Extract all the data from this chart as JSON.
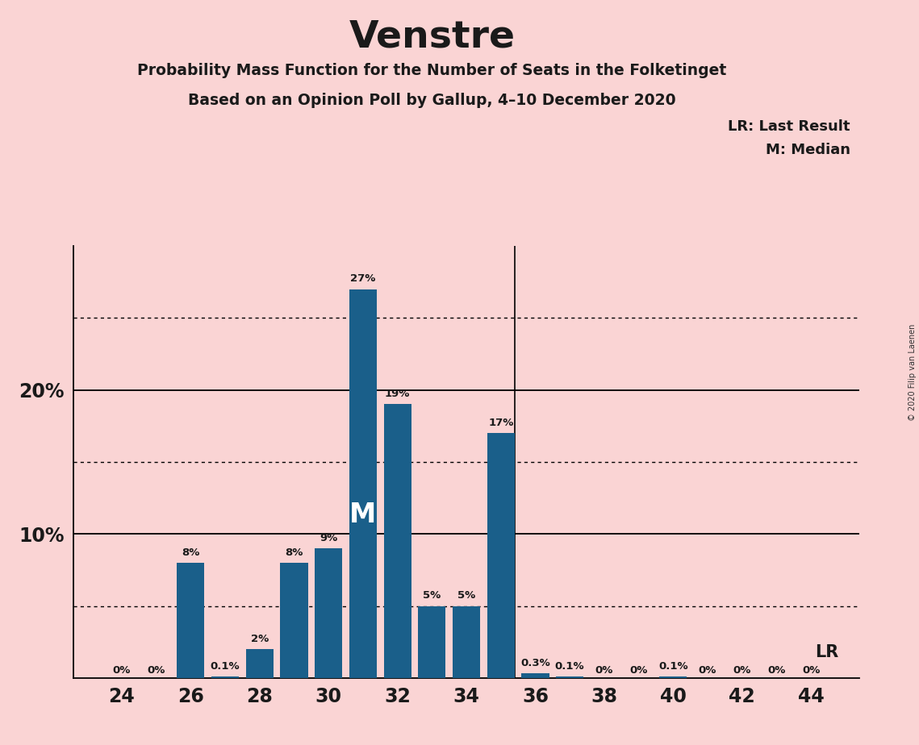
{
  "title": "Venstre",
  "subtitle1": "Probability Mass Function for the Number of Seats in the Folketinget",
  "subtitle2": "Based on an Opinion Poll by Gallup, 4–10 December 2020",
  "copyright": "© 2020 Filip van Laenen",
  "background_color": "#FAD4D4",
  "bar_color": "#1a5f8a",
  "seats": [
    24,
    25,
    26,
    27,
    28,
    29,
    30,
    31,
    32,
    33,
    34,
    35,
    36,
    37,
    38,
    39,
    40,
    41,
    42,
    43,
    44
  ],
  "probabilities": [
    0.0,
    0.0,
    8.0,
    0.1,
    2.0,
    8.0,
    9.0,
    27.0,
    19.0,
    5.0,
    5.0,
    17.0,
    0.3,
    0.1,
    0.0,
    0.0,
    0.1,
    0.0,
    0.0,
    0.0,
    0.0
  ],
  "labels": [
    "0%",
    "0%",
    "8%",
    "0.1%",
    "2%",
    "8%",
    "9%",
    "27%",
    "19%",
    "5%",
    "5%",
    "17%",
    "0.3%",
    "0.1%",
    "0%",
    "0%",
    "0.1%",
    "0%",
    "0%",
    "0%",
    "0%"
  ],
  "xticks": [
    24,
    26,
    28,
    30,
    32,
    34,
    36,
    38,
    40,
    42,
    44
  ],
  "ylim": [
    0,
    30
  ],
  "median_seat": 31,
  "lr_seat": 35,
  "legend_lr": "LR: Last Result",
  "legend_m": "M: Median",
  "solid_lines": [
    10,
    20
  ],
  "dotted_lines": [
    5,
    15,
    25
  ],
  "bar_width": 0.8
}
